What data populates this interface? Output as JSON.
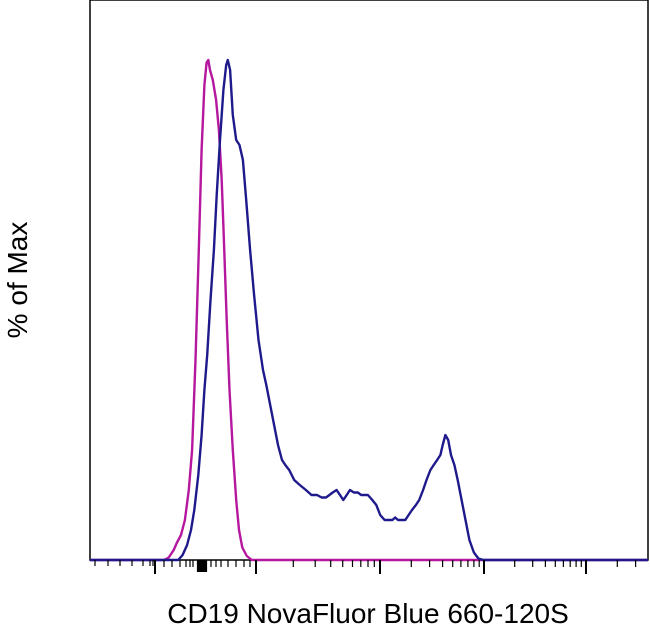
{
  "chart_data": {
    "type": "area",
    "title": "",
    "xlabel": "CD19 NovaFluor Blue 660-120S",
    "ylabel": "% of Max",
    "xlim": [
      0,
      100
    ],
    "ylim": [
      0,
      100
    ],
    "x_ticks": "unlabeled biexponential (log-style) ticks",
    "grid": false,
    "legend": "none",
    "series": [
      {
        "color": "#b5179e",
        "points": [
          [
            13.3,
            0
          ],
          [
            14.1,
            0.5
          ],
          [
            15.0,
            2
          ],
          [
            15.6,
            3.5
          ],
          [
            16.3,
            5
          ],
          [
            17.0,
            8
          ],
          [
            17.7,
            14
          ],
          [
            18.3,
            22
          ],
          [
            18.9,
            40
          ],
          [
            19.5,
            62
          ],
          [
            20.0,
            82
          ],
          [
            20.5,
            95
          ],
          [
            20.9,
            99.5
          ],
          [
            21.2,
            100
          ],
          [
            21.5,
            98
          ],
          [
            22.0,
            96
          ],
          [
            22.6,
            92
          ],
          [
            23.1,
            86
          ],
          [
            23.6,
            76
          ],
          [
            24.0,
            64
          ],
          [
            24.5,
            48
          ],
          [
            25.0,
            34
          ],
          [
            25.6,
            22
          ],
          [
            26.2,
            12
          ],
          [
            26.7,
            6
          ],
          [
            27.3,
            2.5
          ],
          [
            28.1,
            0.8
          ],
          [
            29.0,
            0
          ]
        ]
      },
      {
        "color": "#1f1a8c",
        "points": [
          [
            15.8,
            0
          ],
          [
            16.6,
            1
          ],
          [
            17.4,
            3
          ],
          [
            18.1,
            6
          ],
          [
            18.7,
            10
          ],
          [
            19.4,
            17
          ],
          [
            20.0,
            25
          ],
          [
            20.5,
            34
          ],
          [
            21.0,
            41
          ],
          [
            21.6,
            52
          ],
          [
            22.2,
            62
          ],
          [
            22.7,
            73
          ],
          [
            23.3,
            84
          ],
          [
            23.9,
            94
          ],
          [
            24.4,
            99
          ],
          [
            24.7,
            100
          ],
          [
            25.1,
            98
          ],
          [
            25.6,
            89
          ],
          [
            26.2,
            84
          ],
          [
            26.8,
            83
          ],
          [
            27.4,
            80
          ],
          [
            28.0,
            72
          ],
          [
            28.7,
            62
          ],
          [
            29.4,
            53
          ],
          [
            30.2,
            44
          ],
          [
            31.0,
            38
          ],
          [
            31.6,
            35
          ],
          [
            32.3,
            31
          ],
          [
            33.0,
            27
          ],
          [
            33.7,
            23
          ],
          [
            34.4,
            20
          ],
          [
            35.0,
            19
          ],
          [
            35.7,
            18
          ],
          [
            36.6,
            16
          ],
          [
            37.6,
            15
          ],
          [
            38.7,
            14
          ],
          [
            39.7,
            13
          ],
          [
            40.7,
            13
          ],
          [
            41.5,
            12.5
          ],
          [
            42.3,
            12.5
          ],
          [
            42.9,
            13
          ],
          [
            43.5,
            13.5
          ],
          [
            44.2,
            14
          ],
          [
            44.8,
            13
          ],
          [
            45.4,
            12
          ],
          [
            46.0,
            13
          ],
          [
            46.6,
            14
          ],
          [
            47.3,
            13.5
          ],
          [
            48.0,
            13.5
          ],
          [
            48.6,
            13
          ],
          [
            49.2,
            13
          ],
          [
            49.8,
            13
          ],
          [
            50.6,
            12
          ],
          [
            51.3,
            11
          ],
          [
            52.0,
            9
          ],
          [
            52.8,
            8
          ],
          [
            53.6,
            8
          ],
          [
            54.2,
            8
          ],
          [
            54.7,
            8.5
          ],
          [
            55.2,
            8
          ],
          [
            55.9,
            8
          ],
          [
            56.5,
            8
          ],
          [
            57.1,
            9
          ],
          [
            57.7,
            10
          ],
          [
            58.4,
            11
          ],
          [
            59.0,
            12
          ],
          [
            59.7,
            14
          ],
          [
            60.3,
            16
          ],
          [
            61.0,
            18
          ],
          [
            61.6,
            19
          ],
          [
            62.2,
            20
          ],
          [
            62.8,
            21
          ],
          [
            63.2,
            23
          ],
          [
            63.7,
            25
          ],
          [
            64.2,
            24
          ],
          [
            64.7,
            21
          ],
          [
            65.3,
            19
          ],
          [
            65.9,
            16
          ],
          [
            66.6,
            12
          ],
          [
            67.3,
            8
          ],
          [
            68.0,
            4
          ],
          [
            68.8,
            1.5
          ],
          [
            69.6,
            0.3
          ],
          [
            70.5,
            0
          ]
        ]
      }
    ]
  }
}
